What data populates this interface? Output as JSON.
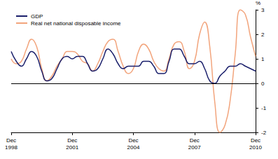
{
  "chart_data": {
    "type": "line",
    "y_label": "%",
    "categories": [
      "Dec 1998",
      null,
      null,
      null,
      null,
      null,
      null,
      null,
      null,
      null,
      null,
      null,
      "Dec 2001",
      null,
      null,
      null,
      null,
      null,
      null,
      null,
      null,
      null,
      null,
      null,
      "Dec 2004",
      null,
      null,
      null,
      null,
      null,
      null,
      null,
      null,
      null,
      null,
      null,
      "Dec 2007",
      null,
      null,
      null,
      null,
      null,
      null,
      null,
      null,
      null,
      null,
      null,
      "Dec 2010"
    ],
    "series": [
      {
        "name": "GDP",
        "color": "#1a1f6b",
        "values": [
          1.3,
          0.9,
          0.7,
          1.0,
          1.3,
          1.1,
          0.5,
          0.1,
          0.2,
          0.6,
          1.0,
          1.1,
          1.0,
          1.1,
          1.1,
          0.8,
          0.5,
          0.6,
          1.0,
          1.4,
          1.2,
          0.8,
          0.6,
          0.7,
          0.7,
          0.7,
          0.9,
          0.9,
          0.7,
          0.4,
          0.4,
          0.9,
          1.4,
          1.4,
          1.1,
          0.8,
          0.8,
          0.9,
          0.6,
          0.1,
          0.0,
          0.3,
          0.5,
          0.7,
          0.7,
          0.8,
          0.7,
          0.6,
          0.5
        ]
      },
      {
        "name": "Real net national disposable income",
        "color": "#f2a47c",
        "values": [
          1.0,
          0.8,
          0.9,
          1.4,
          1.8,
          1.5,
          0.6,
          0.1,
          0.3,
          0.7,
          1.0,
          1.3,
          1.3,
          1.2,
          0.9,
          0.8,
          0.5,
          0.8,
          1.3,
          1.7,
          1.8,
          1.3,
          0.7,
          0.4,
          0.6,
          1.3,
          1.6,
          1.4,
          0.9,
          0.6,
          0.5,
          1.0,
          1.6,
          1.7,
          1.3,
          0.6,
          0.9,
          2.0,
          2.5,
          1.5,
          -0.8,
          -2.0,
          -1.7,
          -0.7,
          1.2,
          3.0,
          2.8,
          1.9,
          1.1
        ]
      }
    ],
    "ylim": [
      -2,
      3
    ],
    "yticks": [
      -2,
      -1,
      0,
      1,
      2,
      3
    ],
    "grid": false,
    "legend": "top-left"
  }
}
